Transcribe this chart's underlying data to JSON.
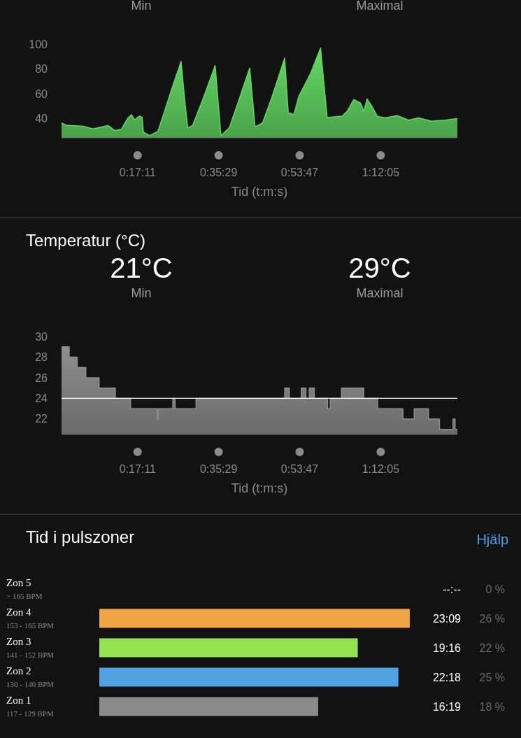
{
  "chart_data": [
    {
      "type": "area",
      "annotations": [
        "Min",
        "Maximal"
      ],
      "xlabel": "Tid (t:m:s)",
      "color": "#62d862",
      "x": [
        0,
        1.1,
        4.9,
        7.1,
        10.5,
        12,
        13.5,
        15,
        15.8,
        16.5,
        17.6,
        18.2,
        18.5,
        19.9,
        21.8,
        22.9,
        25.1,
        27,
        27.8,
        28.5,
        29.6,
        31.9,
        34.7,
        36,
        37.9,
        40.1,
        42.5,
        43.7,
        45.4,
        47.6,
        50.4,
        51.2,
        52.5,
        53.6,
        56.3,
        58.5,
        60,
        61.1,
        63.4,
        64.5,
        66,
        67.5,
        68.3,
        69,
        70.1,
        71.3,
        73.1,
        75.8,
        78.4,
        80.6,
        83.6,
        86.6,
        89.4
      ],
      "values": [
        36.5,
        34.6,
        33.8,
        31.7,
        34.4,
        30.4,
        31.2,
        40.5,
        43,
        39,
        42,
        41,
        29,
        26.3,
        29.8,
        41.9,
        66,
        86,
        55.3,
        32.5,
        34.4,
        55.3,
        82.6,
        26.3,
        32.5,
        55.3,
        80.7,
        33.3,
        36.5,
        58,
        88.7,
        44.6,
        43.2,
        58,
        76.7,
        96.8,
        40.5,
        41.3,
        41.9,
        45.9,
        55.3,
        52.6,
        45.9,
        55.8,
        49.9,
        41.9,
        40.5,
        42.4,
        38.7,
        40.5,
        37.9,
        38.7,
        40
      ],
      "xlim": [
        0,
        89.4
      ],
      "xticks": [
        {
          "value": 17.18,
          "label": "0:17:11"
        },
        {
          "value": 35.48,
          "label": "0:35:29"
        },
        {
          "value": 53.78,
          "label": "0:53:47"
        },
        {
          "value": 72.08,
          "label": "1:12:05"
        }
      ],
      "ylim": [
        24.5,
        100
      ],
      "yticks": [
        40,
        60,
        80,
        100
      ]
    },
    {
      "type": "area",
      "title": "Temperatur (°C)",
      "annotations": [
        "21°C",
        "Min",
        "29°C",
        "Maximal"
      ],
      "xlabel": "Tid (t:m:s)",
      "color": "#8e8e8e",
      "x": [
        0,
        1.73,
        1.73,
        3.53,
        3.53,
        5.48,
        5.48,
        8.48,
        8.48,
        12.15,
        12.15,
        15.6,
        15.6,
        21.6,
        21.6,
        21.83,
        21.83,
        25.13,
        25.13,
        25.65,
        25.65,
        30.38,
        30.38,
        50.4,
        50.4,
        51.45,
        51.45,
        54.15,
        54.15,
        55.2,
        55.2,
        55.95,
        55.95,
        57.08,
        57.08,
        60.08,
        60.08,
        60.68,
        60.68,
        63.23,
        63.23,
        68.25,
        68.25,
        71.4,
        71.4,
        77.1,
        77.1,
        79.65,
        79.65,
        82.88,
        82.88,
        85.35,
        85.35,
        88.43,
        88.43,
        88.88,
        88.88,
        89.4
      ],
      "values": [
        29,
        29,
        28,
        28,
        27,
        27,
        26,
        26,
        25,
        25,
        24,
        24,
        23,
        23,
        22,
        22,
        23,
        23,
        24,
        24,
        23,
        23,
        24,
        24,
        25,
        25,
        24,
        24,
        25,
        25,
        24,
        24,
        25,
        25,
        24,
        24,
        23,
        23,
        24,
        24,
        25,
        25,
        24,
        24,
        23,
        23,
        22,
        22,
        23,
        23,
        22,
        22,
        21,
        21,
        22,
        22,
        21,
        21
      ],
      "xlim": [
        0,
        89.4
      ],
      "xticks": [
        {
          "value": 17.18,
          "label": "0:17:11"
        },
        {
          "value": 35.48,
          "label": "0:35:29"
        },
        {
          "value": 53.78,
          "label": "0:53:47"
        },
        {
          "value": 72.08,
          "label": "1:12:05"
        }
      ],
      "ylim": [
        20.5,
        30
      ],
      "yticks": [
        22,
        24,
        26,
        28,
        30
      ],
      "ref_lines": [
        {
          "axis": "y",
          "value": 24,
          "color": "#ffffff"
        }
      ]
    },
    {
      "type": "bar",
      "orientation": "horizontal",
      "title": "Tid i pulszoner",
      "annotations": [
        "Hjälp",
        "0 %",
        "26 %",
        "22 %",
        "25 %",
        "18 %"
      ],
      "categories": [
        "Zon 5\n> 165 BPM",
        "Zon 4\n153 - 165 BPM",
        "Zon 3\n141 - 152 BPM",
        "Zon 2\n130 - 140 BPM",
        "Zon 1\n117 - 129 BPM"
      ],
      "values": [
        0,
        23.15,
        19.27,
        22.3,
        16.32
      ],
      "value_labels": [
        "--:--",
        "23:09",
        "19:16",
        "22:18",
        "16:19"
      ],
      "colors": [
        null,
        "#f0a444",
        "#94e452",
        "#4fa3e0",
        "#8a8a8a"
      ]
    }
  ]
}
